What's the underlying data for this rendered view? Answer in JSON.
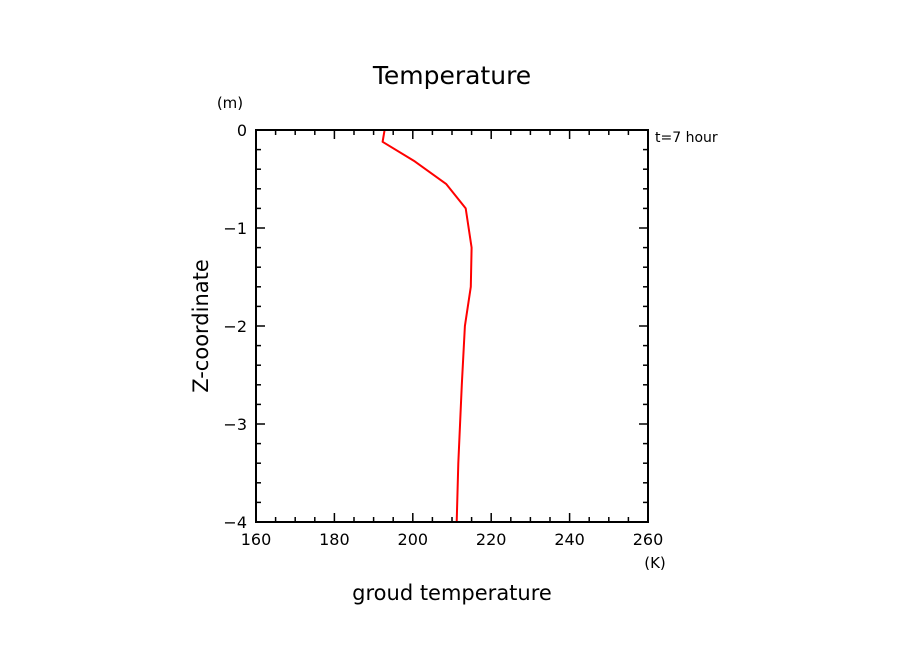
{
  "chart_data": {
    "type": "line",
    "title": "Temperature",
    "xlabel": "groud temperature",
    "ylabel": "Z-coordinate",
    "x_unit": "(K)",
    "y_unit": "(m)",
    "annotation": "t=7 hour",
    "xlim": [
      160,
      260
    ],
    "ylim": [
      -4,
      0
    ],
    "x_ticks": [
      "160",
      "180",
      "200",
      "220",
      "240",
      "260"
    ],
    "y_ticks": [
      "0",
      "−1",
      "−2",
      "−3",
      "−4"
    ],
    "grid": false,
    "series": [
      {
        "color": "#ff0000",
        "x": [
          192.8,
          192.3,
          200.5,
          208.5,
          213.5,
          215.0,
          214.8,
          213.3,
          212.5,
          211.6,
          211.2
        ],
        "y": [
          0.0,
          -0.12,
          -0.32,
          -0.55,
          -0.8,
          -1.2,
          -1.6,
          -2.0,
          -2.6,
          -3.4,
          -4.0
        ]
      }
    ]
  }
}
